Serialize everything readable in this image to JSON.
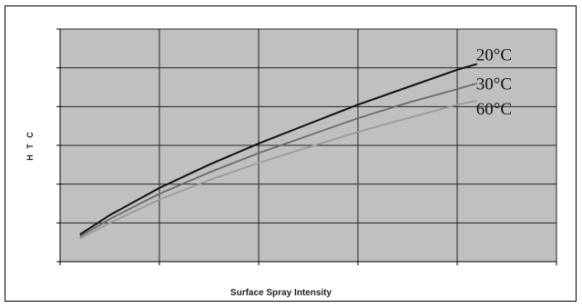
{
  "chart_data": {
    "type": "line",
    "xlabel": "Surface Spray Intensity",
    "ylabel": "H T C",
    "xlim": [
      0,
      5
    ],
    "ylim": [
      0,
      6
    ],
    "grid": true,
    "legend": "inline-right",
    "background": "#c0c0c0",
    "series": [
      {
        "name": "20°C",
        "color": "#111111",
        "x": [
          0.2,
          0.5,
          1,
          1.5,
          2,
          2.5,
          3,
          3.5,
          4,
          4.2
        ],
        "y": [
          0.7,
          1.2,
          1.9,
          2.5,
          3.05,
          3.55,
          4.05,
          4.5,
          4.95,
          5.1
        ]
      },
      {
        "name": "30°C",
        "color": "#6a6a6a",
        "x": [
          0.2,
          0.5,
          1,
          1.5,
          2,
          2.5,
          3,
          3.5,
          4,
          4.2
        ],
        "y": [
          0.65,
          1.1,
          1.75,
          2.3,
          2.8,
          3.25,
          3.7,
          4.1,
          4.45,
          4.6
        ]
      },
      {
        "name": "60°C",
        "color": "#9a9a9a",
        "x": [
          0.2,
          0.5,
          1,
          1.5,
          2,
          2.5,
          3,
          3.5,
          4,
          4.2
        ],
        "y": [
          0.6,
          1.0,
          1.6,
          2.1,
          2.55,
          2.95,
          3.35,
          3.7,
          4.05,
          4.15
        ]
      }
    ]
  }
}
